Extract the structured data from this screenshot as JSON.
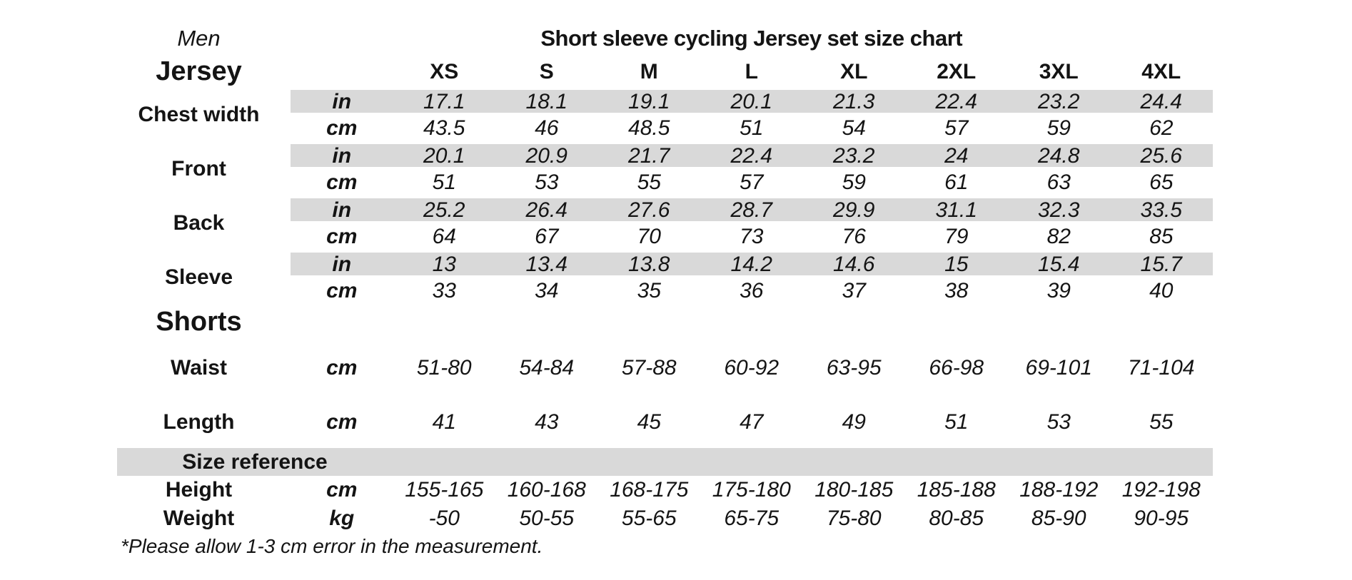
{
  "chart_data": {
    "type": "table",
    "title": "Short sleeve cycling Jersey set size chart",
    "gender_label": "Men",
    "size_columns": [
      "XS",
      "S",
      "M",
      "L",
      "XL",
      "2XL",
      "3XL",
      "4XL"
    ],
    "jersey": {
      "section_label": "Jersey",
      "measurements": [
        {
          "label": "Chest width",
          "rows": [
            {
              "unit": "in",
              "shaded": true,
              "values": [
                "17.1",
                "18.1",
                "19.1",
                "20.1",
                "21.3",
                "22.4",
                "23.2",
                "24.4"
              ]
            },
            {
              "unit": "cm",
              "shaded": false,
              "values": [
                "43.5",
                "46",
                "48.5",
                "51",
                "54",
                "57",
                "59",
                "62"
              ]
            }
          ]
        },
        {
          "label": "Front",
          "rows": [
            {
              "unit": "in",
              "shaded": true,
              "values": [
                "20.1",
                "20.9",
                "21.7",
                "22.4",
                "23.2",
                "24",
                "24.8",
                "25.6"
              ]
            },
            {
              "unit": "cm",
              "shaded": false,
              "values": [
                "51",
                "53",
                "55",
                "57",
                "59",
                "61",
                "63",
                "65"
              ]
            }
          ]
        },
        {
          "label": "Back",
          "rows": [
            {
              "unit": "in",
              "shaded": true,
              "values": [
                "25.2",
                "26.4",
                "27.6",
                "28.7",
                "29.9",
                "31.1",
                "32.3",
                "33.5"
              ]
            },
            {
              "unit": "cm",
              "shaded": false,
              "values": [
                "64",
                "67",
                "70",
                "73",
                "76",
                "79",
                "82",
                "85"
              ]
            }
          ]
        },
        {
          "label": "Sleeve",
          "rows": [
            {
              "unit": "in",
              "shaded": true,
              "values": [
                "13",
                "13.4",
                "13.8",
                "14.2",
                "14.6",
                "15",
                "15.4",
                "15.7"
              ]
            },
            {
              "unit": "cm",
              "shaded": false,
              "values": [
                "33",
                "34",
                "35",
                "36",
                "37",
                "38",
                "39",
                "40"
              ]
            }
          ]
        }
      ]
    },
    "shorts": {
      "section_label": "Shorts",
      "measurements": [
        {
          "label": "Waist",
          "unit": "cm",
          "values": [
            "51-80",
            "54-84",
            "57-88",
            "60-92",
            "63-95",
            "66-98",
            "69-101",
            "71-104"
          ]
        },
        {
          "label": "Length",
          "unit": "cm",
          "values": [
            "41",
            "43",
            "45",
            "47",
            "49",
            "51",
            "53",
            "55"
          ]
        }
      ]
    },
    "size_reference": {
      "section_label": "Size reference",
      "rows": [
        {
          "label": "Height",
          "unit": "cm",
          "values": [
            "155-165",
            "160-168",
            "168-175",
            "175-180",
            "180-185",
            "185-188",
            "188-192",
            "192-198"
          ]
        },
        {
          "label": "Weight",
          "unit": "kg",
          "values": [
            "-50",
            "50-55",
            "55-65",
            "65-75",
            "75-80",
            "80-85",
            "85-90",
            "90-95"
          ]
        }
      ]
    },
    "footnote": "*Please allow 1-3 cm error in the measurement.",
    "colors": {
      "shaded_row": "#d9d9d9",
      "text": "#141414",
      "background": "#ffffff"
    }
  }
}
